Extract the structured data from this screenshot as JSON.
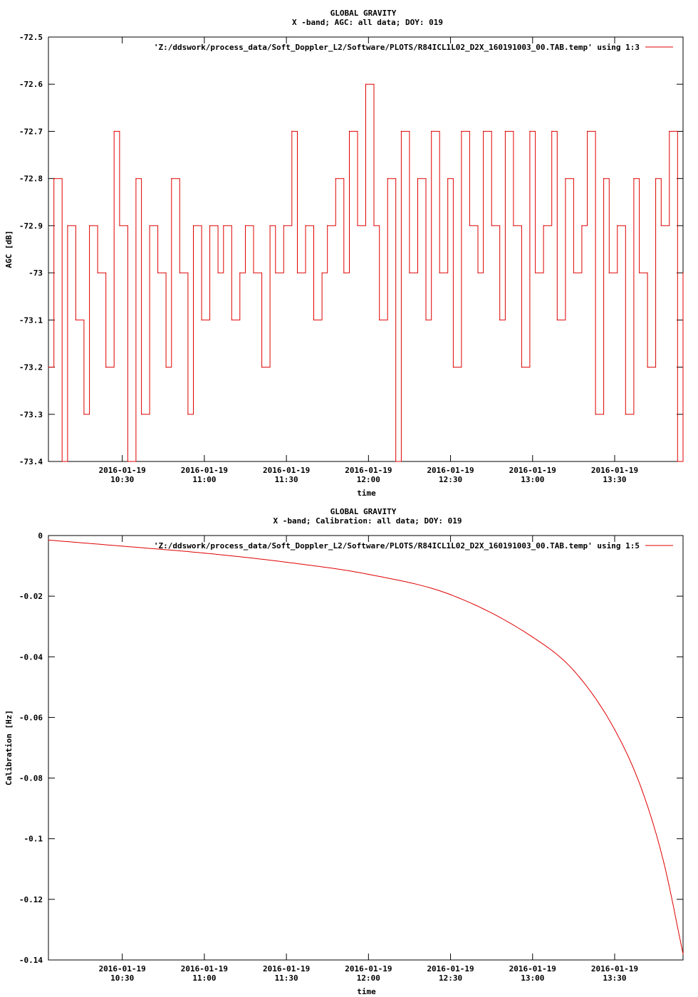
{
  "chart_data": [
    {
      "type": "line",
      "title": "GLOBAL GRAVITY",
      "subtitle": "X -band; AGC: all data; DOY: 019",
      "ylabel": "AGC [dB]",
      "xlabel": "time",
      "legend": {
        "text": "'Z:/ddswork/process_data/Soft_Doppler_L2/Software/PLOTS/R84ICL1L02_D2X_160191003_00.TAB.temp' using 1:3",
        "color": "#e00000",
        "position": "top-right"
      },
      "ylim": [
        -73.4,
        -72.5
      ],
      "yticks": [
        -72.5,
        -72.6,
        -72.7,
        -72.8,
        -72.9,
        -73,
        -73.1,
        -73.2,
        -73.3,
        -73.4
      ],
      "ytick_labels": [
        "-72.5",
        "-72.6",
        "-72.7",
        "-72.8",
        "-72.9",
        "-73",
        "-73.1",
        "-73.2",
        "-73.3",
        "-73.4"
      ],
      "xlim": [
        "2016-01-19 10:03",
        "2016-01-19 13:55"
      ],
      "xticks": [
        "2016-01-19 10:30",
        "2016-01-19 11:00",
        "2016-01-19 11:30",
        "2016-01-19 12:00",
        "2016-01-19 12:30",
        "2016-01-19 13:00",
        "2016-01-19 13:30"
      ],
      "xtick_labels": [
        [
          "2016-01-19",
          "10:30"
        ],
        [
          "2016-01-19",
          "11:00"
        ],
        [
          "2016-01-19",
          "11:30"
        ],
        [
          "2016-01-19",
          "12:00"
        ],
        [
          "2016-01-19",
          "12:30"
        ],
        [
          "2016-01-19",
          "13:00"
        ],
        [
          "2016-01-19",
          "13:30"
        ]
      ],
      "series": [
        {
          "color": "#e00000",
          "x": [
            "2016-01-19 10:03",
            "2016-01-19 10:05",
            "2016-01-19 10:08",
            "2016-01-19 10:10",
            "2016-01-19 10:13",
            "2016-01-19 10:16",
            "2016-01-19 10:18",
            "2016-01-19 10:21",
            "2016-01-19 10:24",
            "2016-01-19 10:27",
            "2016-01-19 10:29",
            "2016-01-19 10:32",
            "2016-01-19 10:35",
            "2016-01-19 10:37",
            "2016-01-19 10:40",
            "2016-01-19 10:43",
            "2016-01-19 10:46",
            "2016-01-19 10:48",
            "2016-01-19 10:51",
            "2016-01-19 10:54",
            "2016-01-19 10:56",
            "2016-01-19 10:59",
            "2016-01-19 11:02",
            "2016-01-19 11:05",
            "2016-01-19 11:07",
            "2016-01-19 11:10",
            "2016-01-19 11:13",
            "2016-01-19 11:15",
            "2016-01-19 11:18",
            "2016-01-19 11:21",
            "2016-01-19 11:24",
            "2016-01-19 11:26",
            "2016-01-19 11:29",
            "2016-01-19 11:32",
            "2016-01-19 11:34",
            "2016-01-19 11:37",
            "2016-01-19 11:40",
            "2016-01-19 11:43",
            "2016-01-19 11:45",
            "2016-01-19 11:48",
            "2016-01-19 11:51",
            "2016-01-19 11:53",
            "2016-01-19 11:56",
            "2016-01-19 11:59",
            "2016-01-19 12:02",
            "2016-01-19 12:04",
            "2016-01-19 12:07",
            "2016-01-19 12:10",
            "2016-01-19 12:12",
            "2016-01-19 12:15",
            "2016-01-19 12:18",
            "2016-01-19 12:21",
            "2016-01-19 12:23",
            "2016-01-19 12:26",
            "2016-01-19 12:29",
            "2016-01-19 12:31",
            "2016-01-19 12:34",
            "2016-01-19 12:37",
            "2016-01-19 12:40",
            "2016-01-19 12:42",
            "2016-01-19 12:45",
            "2016-01-19 12:48",
            "2016-01-19 12:50",
            "2016-01-19 12:53",
            "2016-01-19 12:56",
            "2016-01-19 12:59",
            "2016-01-19 13:01",
            "2016-01-19 13:04",
            "2016-01-19 13:07",
            "2016-01-19 13:09",
            "2016-01-19 13:12",
            "2016-01-19 13:15",
            "2016-01-19 13:18",
            "2016-01-19 13:20",
            "2016-01-19 13:23",
            "2016-01-19 13:26",
            "2016-01-19 13:28",
            "2016-01-19 13:31",
            "2016-01-19 13:34",
            "2016-01-19 13:37",
            "2016-01-19 13:39",
            "2016-01-19 13:42",
            "2016-01-19 13:45",
            "2016-01-19 13:47",
            "2016-01-19 13:50",
            "2016-01-19 13:53",
            "2016-01-19 13:55"
          ],
          "y": [
            -73.2,
            -72.8,
            -73.4,
            -72.9,
            -73.1,
            -73.3,
            -72.9,
            -73.0,
            -73.2,
            -72.7,
            -72.9,
            -73.4,
            -72.8,
            -73.3,
            -72.9,
            -73.0,
            -73.2,
            -72.8,
            -73.0,
            -73.3,
            -72.9,
            -73.1,
            -72.9,
            -73.0,
            -72.9,
            -73.1,
            -73.0,
            -72.9,
            -73.0,
            -73.2,
            -72.9,
            -73.0,
            -72.9,
            -72.7,
            -73.0,
            -72.9,
            -73.1,
            -73.0,
            -72.9,
            -72.8,
            -73.0,
            -72.7,
            -72.9,
            -72.6,
            -72.9,
            -73.1,
            -72.8,
            -73.4,
            -72.7,
            -73.0,
            -72.8,
            -73.1,
            -72.7,
            -73.0,
            -72.8,
            -73.2,
            -72.7,
            -72.9,
            -73.0,
            -72.7,
            -72.9,
            -73.1,
            -72.7,
            -72.9,
            -73.2,
            -72.7,
            -73.0,
            -72.9,
            -72.7,
            -73.1,
            -72.8,
            -73.0,
            -72.9,
            -72.7,
            -73.3,
            -72.8,
            -73.0,
            -72.9,
            -73.3,
            -72.8,
            -73.0,
            -73.2,
            -72.8,
            -72.9,
            -72.7,
            -73.4,
            -73.0
          ]
        }
      ]
    },
    {
      "type": "line",
      "title": "GLOBAL GRAVITY",
      "subtitle": "X -band; Calibration: all data; DOY: 019",
      "ylabel": "Calibration [Hz]",
      "xlabel": "time",
      "legend": {
        "text": "'Z:/ddswork/process_data/Soft_Doppler_L2/Software/PLOTS/R84ICL1L02_D2X_160191003_00.TAB.temp' using 1:5",
        "color": "#e00000",
        "position": "top-right"
      },
      "ylim": [
        -0.14,
        0
      ],
      "yticks": [
        0,
        -0.02,
        -0.04,
        -0.06,
        -0.08,
        -0.1,
        -0.12,
        -0.14
      ],
      "ytick_labels": [
        "0",
        "-0.02",
        "-0.04",
        "-0.06",
        "-0.08",
        "-0.1",
        "-0.12",
        "-0.14"
      ],
      "xlim": [
        "2016-01-19 10:03",
        "2016-01-19 13:55"
      ],
      "xticks": [
        "2016-01-19 10:30",
        "2016-01-19 11:00",
        "2016-01-19 11:30",
        "2016-01-19 12:00",
        "2016-01-19 12:30",
        "2016-01-19 13:00",
        "2016-01-19 13:30"
      ],
      "xtick_labels": [
        [
          "2016-01-19",
          "10:30"
        ],
        [
          "2016-01-19",
          "11:00"
        ],
        [
          "2016-01-19",
          "11:30"
        ],
        [
          "2016-01-19",
          "12:00"
        ],
        [
          "2016-01-19",
          "12:30"
        ],
        [
          "2016-01-19",
          "13:00"
        ],
        [
          "2016-01-19",
          "13:30"
        ]
      ],
      "series": [
        {
          "color": "#e00000",
          "x": [
            "2016-01-19 10:03",
            "2016-01-19 10:30",
            "2016-01-19 11:00",
            "2016-01-19 11:30",
            "2016-01-19 12:00",
            "2016-01-19 12:30",
            "2016-01-19 13:00",
            "2016-01-19 13:15",
            "2016-01-19 13:30",
            "2016-01-19 13:40",
            "2016-01-19 13:48",
            "2016-01-19 13:55"
          ],
          "y": [
            -0.0015,
            -0.0035,
            -0.0058,
            -0.0088,
            -0.0128,
            -0.0195,
            -0.0335,
            -0.0445,
            -0.064,
            -0.084,
            -0.108,
            -0.138
          ]
        }
      ]
    }
  ]
}
